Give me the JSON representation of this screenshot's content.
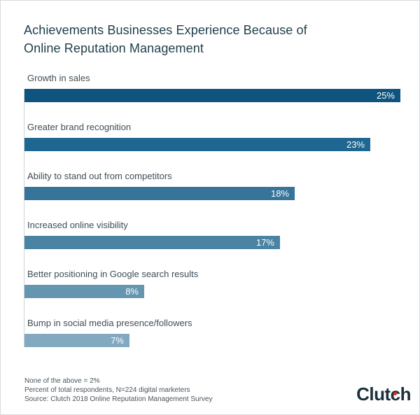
{
  "title": {
    "line1": "Achievements Businesses Experience Because of",
    "line2": "Online Reputation Management"
  },
  "chart_data": {
    "type": "bar",
    "orientation": "horizontal",
    "title": "Achievements Businesses Experience Because of Online Reputation Management",
    "categories": [
      "Growth in sales",
      "Greater brand recognition",
      "Ability to stand out from competitors",
      "Increased online visibility",
      "Better positioning in Google search results",
      "Bump in social media presence/followers"
    ],
    "values": [
      25,
      23,
      18,
      17,
      8,
      7
    ],
    "value_labels": [
      "25%",
      "23%",
      "18%",
      "17%",
      "8%",
      "7%"
    ],
    "unit": "%",
    "xlim": [
      0,
      26
    ],
    "grid": false,
    "legend": false,
    "value_label_position": "inside-end",
    "value_label_color": "#ffffff",
    "bar_colors": [
      "#0f547e",
      "#1f6690",
      "#36749a",
      "#4b83a2",
      "#6596b1",
      "#82a9bf"
    ]
  },
  "footer": {
    "lines": [
      "None of the above = 2%",
      "Percent of total respondents, N=224 digital marketers",
      "Source: Clutch 2018 Online Reputation Management Survey"
    ]
  },
  "logo": {
    "text": "Clutch",
    "part1": "Clut",
    "c": "c",
    "part2": "h",
    "dot_color": "#e62b1e"
  },
  "colors": {
    "title_text": "#1d3d49",
    "category_label_text": "#3f4e57",
    "axis_line": "#cfd4d6",
    "card_border": "#d8dbdd",
    "logo_text": "#1b303c"
  }
}
